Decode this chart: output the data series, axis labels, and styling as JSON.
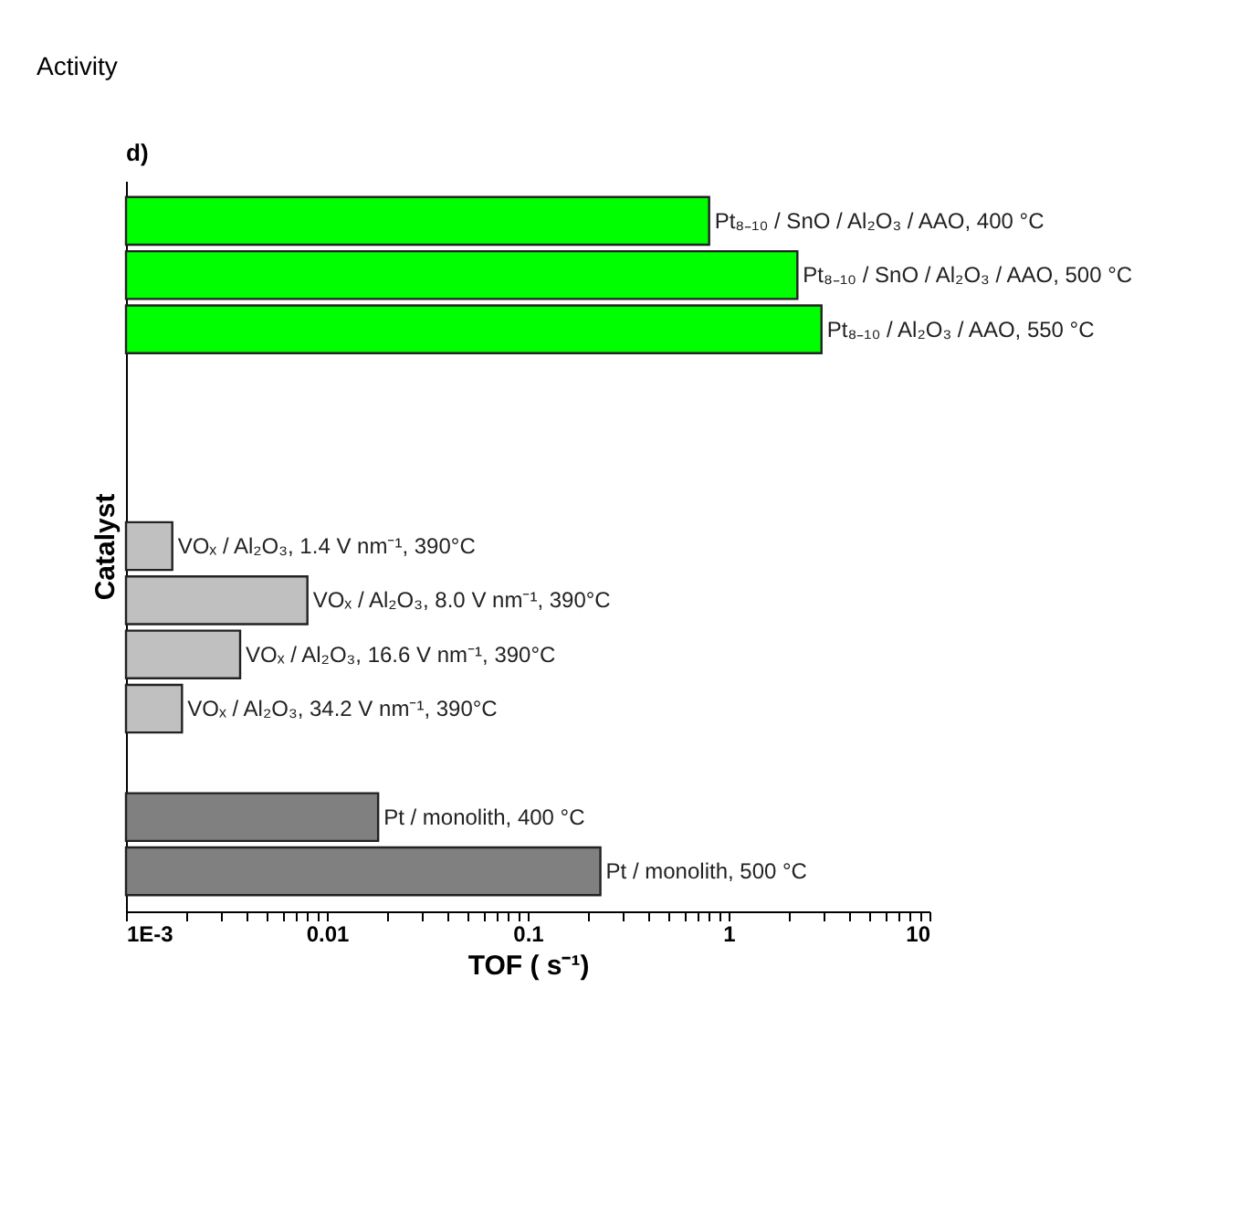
{
  "chart_data": {
    "type": "bar",
    "orientation": "horizontal",
    "log": "x",
    "title": "Activity",
    "annotations": [
      "d)"
    ],
    "xlabel": "TOF ( s⁻¹)",
    "ylabel": "Catalyst",
    "categories": [
      "Pt₈₋₁₀ / SnO / Al₂O₃ / AAO, 400 °C",
      "Pt₈₋₁₀ / SnO / Al₂O₃ / AAO, 500 °C",
      "Pt₈₋₁₀ / Al₂O₃ / AAO, 550 °C",
      null,
      null,
      null,
      "VOₓ / Al₂O₃, 1.4 V nm⁻¹, 390°C",
      "VOₓ / Al₂O₃, 8.0 V nm⁻¹, 390°C",
      "VOₓ / Al₂O₃, 16.6 V nm⁻¹, 390°C",
      "VOₓ / Al₂O₃, 34.2 V nm⁻¹, 390°C",
      null,
      "Pt / monolith, 400 °C",
      "Pt / monolith, 500 °C"
    ],
    "values": [
      0.8,
      2.2,
      2.9,
      null,
      null,
      null,
      0.0017,
      0.008,
      0.0037,
      0.0019,
      null,
      0.018,
      0.23
    ],
    "colors": [
      "#00ff00",
      "#00ff00",
      "#00ff00",
      null,
      null,
      null,
      "#c0c0c0",
      "#c0c0c0",
      "#c0c0c0",
      "#c0c0c0",
      null,
      "#808080",
      "#808080"
    ],
    "xlim": [
      0.001,
      10
    ],
    "xticks": [
      {
        "value": 0.001,
        "label": "1E-3"
      },
      {
        "value": 0.002,
        "label": null
      },
      {
        "value": 0.003,
        "label": null
      },
      {
        "value": 0.004,
        "label": null
      },
      {
        "value": 0.005,
        "label": null
      },
      {
        "value": 0.006,
        "label": null
      },
      {
        "value": 0.007,
        "label": null
      },
      {
        "value": 0.008,
        "label": null
      },
      {
        "value": 0.009,
        "label": null
      },
      0.01,
      {
        "value": 0.02,
        "label": null
      },
      {
        "value": 0.03,
        "label": null
      },
      {
        "value": 0.04,
        "label": null
      },
      {
        "value": 0.05,
        "label": null
      },
      {
        "value": 0.06,
        "label": null
      },
      {
        "value": 0.07,
        "label": null
      },
      {
        "value": 0.08,
        "label": null
      },
      {
        "value": 0.09,
        "label": null
      },
      0.1,
      {
        "value": 0.2,
        "label": null
      },
      {
        "value": 0.3,
        "label": null
      },
      {
        "value": 0.4,
        "label": null
      },
      {
        "value": 0.5,
        "label": null
      },
      {
        "value": 0.6,
        "label": null
      },
      {
        "value": 0.7,
        "label": null
      },
      {
        "value": 0.8,
        "label": null
      },
      {
        "value": 0.9,
        "label": null
      },
      1,
      {
        "value": 2,
        "label": null
      },
      {
        "value": 3,
        "label": null
      },
      {
        "value": 4,
        "label": null
      },
      {
        "value": 5,
        "label": null
      },
      {
        "value": 6,
        "label": null
      },
      {
        "value": 7,
        "label": null
      },
      {
        "value": 8,
        "label": null
      },
      {
        "value": 9,
        "label": null
      },
      10
    ],
    "tick_labels": "x",
    "grid": false
  }
}
